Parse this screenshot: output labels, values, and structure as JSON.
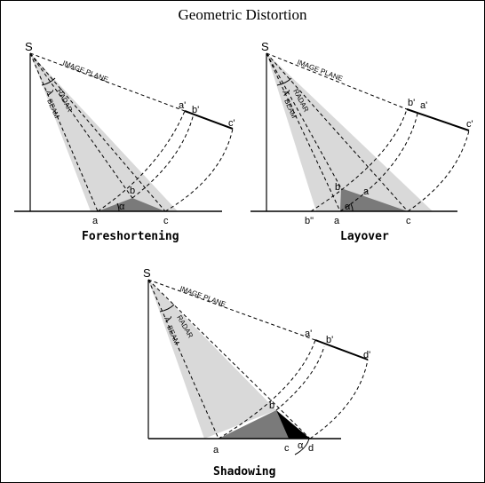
{
  "title": "Geometric Distortion",
  "colors": {
    "beam": "#d9d9d9",
    "slope": "#7a7a7a",
    "shadow": "#000000",
    "line": "#000000"
  },
  "panels": {
    "foreshortening": {
      "caption": "Foreshortening",
      "labels": {
        "S": "S",
        "a": "a",
        "b": "b",
        "c": "c",
        "a_prime": "a'",
        "b_prime": "b'",
        "c_prime": "c'",
        "alpha": "α",
        "lambda": "λ",
        "image_plane": "IMAGE PLANE",
        "radar": "RADAR",
        "beam": "BEAM"
      }
    },
    "layover": {
      "caption": "Layover",
      "labels": {
        "S": "S",
        "a": "a",
        "b": "b",
        "c": "c",
        "a_prime": "a'",
        "b_prime": "b'",
        "c_prime": "c'",
        "b_double_prime": "b\"",
        "alpha": "α",
        "lambda": "λ",
        "image_plane": "IMAGE PLANE",
        "radar": "RADAR",
        "beam": "BEAM"
      }
    },
    "shadowing": {
      "caption": "Shadowing",
      "labels": {
        "S": "S",
        "a": "a",
        "b": "b",
        "c": "c",
        "d": "d",
        "a_prime": "a'",
        "b_prime": "b'",
        "d_prime": "d'",
        "alpha": "α",
        "lambda": "λ",
        "image_plane": "IMAGE PLANE",
        "radar": "RADAR",
        "beam": "BEAM"
      }
    }
  }
}
